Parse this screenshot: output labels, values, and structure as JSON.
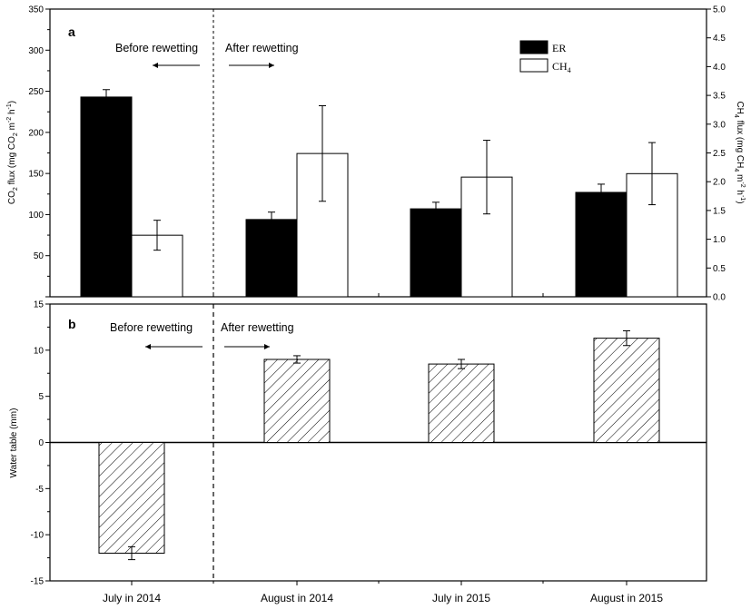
{
  "chart_data": [
    {
      "panel": "a",
      "type": "bar",
      "categories": [
        "July in 2014",
        "August in 2014",
        "July in 2015",
        "August in 2015"
      ],
      "series": [
        {
          "name": "ER",
          "axis": "left",
          "values": [
            243,
            94,
            107,
            127
          ],
          "errors": [
            9,
            9,
            8,
            10
          ],
          "fill": "#000000"
        },
        {
          "name": "CH4",
          "axis": "right",
          "values": [
            1.07,
            2.49,
            2.08,
            2.14
          ],
          "errors": [
            0.26,
            0.83,
            0.64,
            0.54
          ],
          "fill": "#ffffff"
        }
      ],
      "ylabel_left": "CO2 flux (mg CO2 m-2 h-1)",
      "ylabel_right": "CH4 flux (mg CH4 m-2 h-1)",
      "ylim_left": [
        0,
        350
      ],
      "ylim_right": [
        0,
        5.0
      ],
      "yticks_left": [
        0,
        50,
        100,
        150,
        200,
        250,
        300,
        350
      ],
      "yticks_right": [
        0.0,
        0.5,
        1.0,
        1.5,
        2.0,
        2.5,
        3.0,
        3.5,
        4.0,
        4.5,
        5.0
      ],
      "legend_position": "top-right"
    },
    {
      "panel": "b",
      "type": "bar",
      "categories": [
        "July in 2014",
        "August in 2014",
        "July in 2015",
        "August in 2015"
      ],
      "series": [
        {
          "name": "Water table",
          "values": [
            -12,
            9,
            8.5,
            11.3
          ],
          "errors": [
            0.7,
            0.4,
            0.5,
            0.8
          ],
          "pattern": "hatched"
        }
      ],
      "ylabel": "Water table (mm)",
      "ylim": [
        -15,
        15
      ],
      "yticks": [
        -15,
        -10,
        -5,
        0,
        5,
        10,
        15
      ]
    }
  ],
  "text": {
    "panel_a_letter": "a",
    "panel_b_letter": "b",
    "before_rewetting": "Before rewetting",
    "after_rewetting": "After rewetting",
    "legend_er": "ER",
    "legend_ch4_main": "CH",
    "legend_ch4_sub": "4",
    "a_ylabel_parts": [
      "CO",
      "2",
      " flux (mg CO",
      "2",
      " m",
      "-2",
      " h",
      "-1",
      ")"
    ],
    "a_ylabel_right_parts": [
      "CH",
      "4",
      " flux (mg CH",
      "4",
      " m",
      "-2",
      " h",
      "-1",
      ")"
    ],
    "b_ylabel": "Water table (mm)"
  }
}
